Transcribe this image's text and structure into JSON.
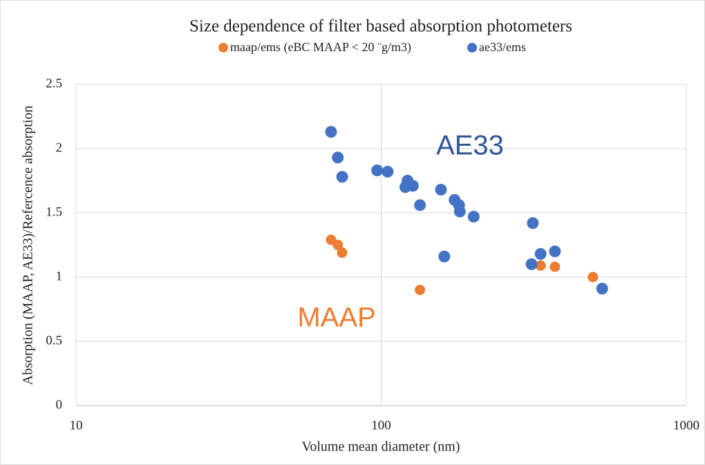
{
  "chart_data": {
    "type": "scatter",
    "title": "Size dependence of filter based absorption photometers",
    "xlabel": "Volume mean diameter (nm)",
    "ylabel": "Absorption (MAAP, AE33)/Refercence absorption",
    "xscale": "log",
    "xlim": [
      10,
      1000
    ],
    "xticks": [
      10,
      100,
      1000
    ],
    "ylim": [
      0,
      2.5
    ],
    "yticks": [
      0,
      0.5,
      1,
      1.5,
      2,
      2.5
    ],
    "grid": true,
    "legend": "top",
    "annotations": [
      {
        "text": "AE33",
        "color": "#2f5597"
      },
      {
        "text": "MAAP",
        "color": "#ed7d31"
      }
    ],
    "series": [
      {
        "name": "maap/ems (eBC MAAP < 20 ¨g/m3)",
        "color": "#ed7d31",
        "x": [
          68.5,
          72.1,
          74.5,
          134,
          333,
          371,
          494
        ],
        "values": [
          1.29,
          1.25,
          1.19,
          0.9,
          1.09,
          1.08,
          1.0
        ]
      },
      {
        "name": "ae33/ems",
        "color": "#4472c4",
        "x": [
          68.5,
          72.1,
          74.5,
          97,
          105,
          120,
          122,
          127,
          134,
          157,
          161,
          174,
          180,
          181,
          201,
          311,
          314,
          333,
          371,
          530
        ],
        "values": [
          2.13,
          1.93,
          1.78,
          1.83,
          1.82,
          1.7,
          1.75,
          1.71,
          1.56,
          1.68,
          1.16,
          1.6,
          1.56,
          1.51,
          1.47,
          1.1,
          1.42,
          1.18,
          1.2,
          0.91
        ]
      }
    ]
  }
}
